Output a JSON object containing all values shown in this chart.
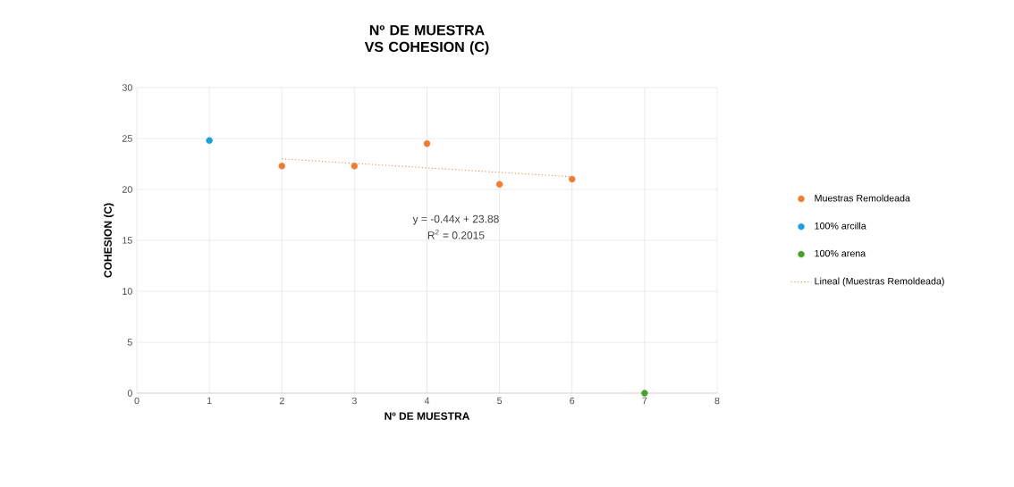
{
  "chart_data": {
    "type": "scatter",
    "title": "Nº DE MUESTRA VS COHESION (C)",
    "xlabel": "Nº DE MUESTRA",
    "ylabel": "COHESION (C)",
    "xlim": [
      0,
      8
    ],
    "xticks": [
      0,
      1,
      2,
      3,
      4,
      5,
      6,
      7,
      8
    ],
    "ylim": [
      0,
      30
    ],
    "yticks": [
      0,
      5,
      10,
      15,
      20,
      25,
      30
    ],
    "grid": true,
    "legend": "right",
    "marker": "circle",
    "series": [
      {
        "name": "Muestras Remoldeada",
        "color": "#ed7d31",
        "x": [
          2,
          3,
          4,
          5,
          6
        ],
        "values": [
          22.3,
          22.3,
          24.5,
          20.5,
          21.0
        ]
      },
      {
        "name": "100% arcilla",
        "color": "#1ca0dc",
        "x": [
          1
        ],
        "values": [
          24.8
        ]
      },
      {
        "name": "100% arena",
        "color": "#4aa02c",
        "x": [
          7
        ],
        "values": [
          0
        ]
      },
      {
        "name": "Lineal (Muestras Remoldeada)",
        "type": "line",
        "color": "#ed7d31",
        "line_style": "dotted",
        "marker": "none",
        "x": [
          2,
          6
        ],
        "values": [
          23.0,
          21.24
        ]
      }
    ],
    "annotations": [
      "y = -0.44x + 23.88",
      "R$^{2}$ = 0.2015"
    ]
  }
}
